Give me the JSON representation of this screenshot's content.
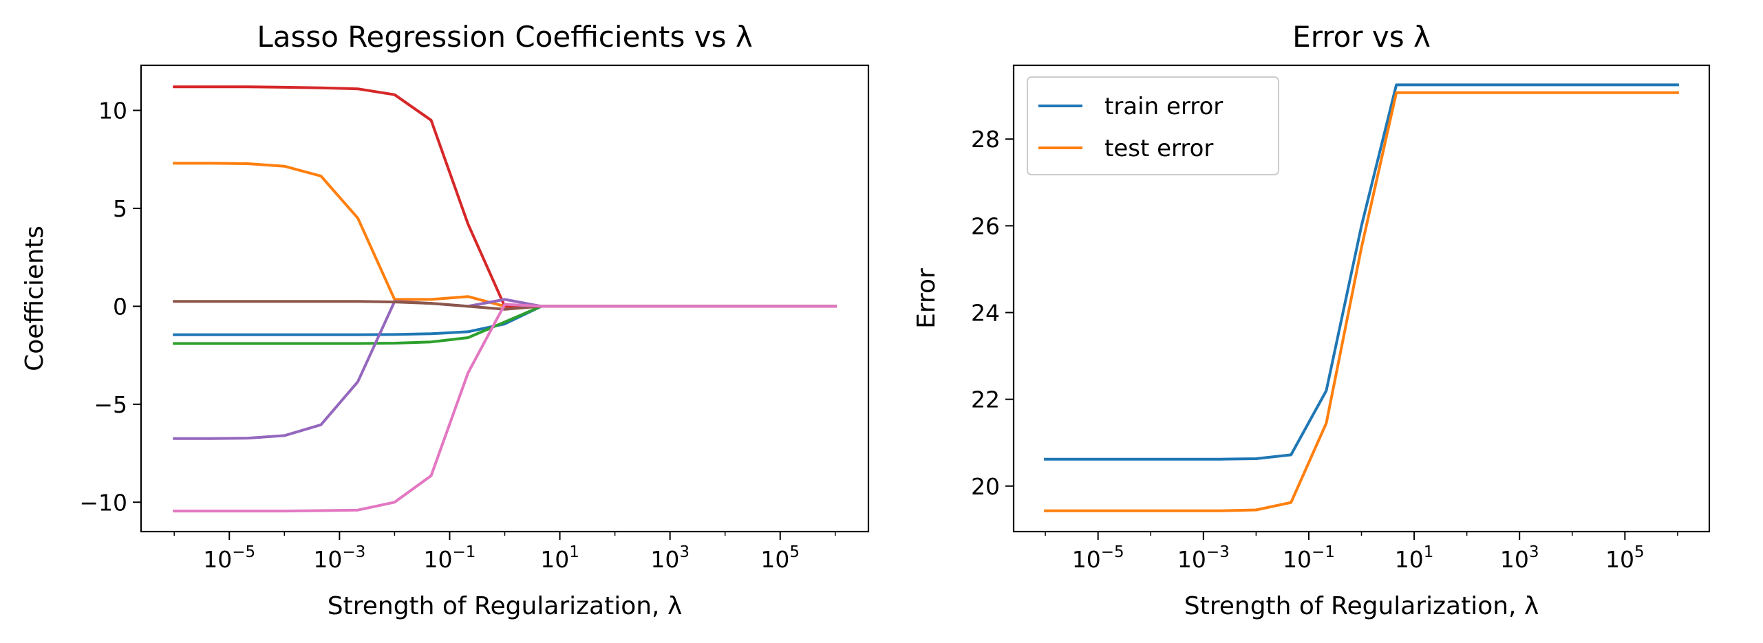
{
  "chart_data": [
    {
      "type": "line",
      "title": "Lasso Regression Coefficients vs λ",
      "xlabel": "Strength of Regularization, λ",
      "ylabel": "Coefficients",
      "xscale": "log",
      "xlim": [
        2.5e-07,
        4000000.0
      ],
      "ylim": [
        -11.5,
        12.3
      ],
      "xticks": [
        {
          "value": 1e-05,
          "base": "10",
          "exp": "−5"
        },
        {
          "value": 0.001,
          "base": "10",
          "exp": "−3"
        },
        {
          "value": 0.1,
          "base": "10",
          "exp": "−1"
        },
        {
          "value": 10.0,
          "base": "10",
          "exp": "1"
        },
        {
          "value": 1000.0,
          "base": "10",
          "exp": "3"
        },
        {
          "value": 100000.0,
          "base": "10",
          "exp": "5"
        }
      ],
      "yticks": [
        {
          "value": 10,
          "label": "10"
        },
        {
          "value": 5,
          "label": "5"
        },
        {
          "value": 0,
          "label": "0"
        },
        {
          "value": -5,
          "label": "−5"
        },
        {
          "value": -10,
          "label": "−10"
        }
      ],
      "grid": false,
      "x": [
        1e-06,
        4.6e-06,
        2.15e-05,
        0.0001,
        0.00046,
        0.00215,
        0.01,
        0.046,
        0.215,
        1,
        4.6,
        21.5,
        100,
        464,
        2150,
        10000,
        46400,
        215000,
        1000000
      ],
      "series": [
        {
          "color": "#1f77b4",
          "values": [
            -1.45,
            -1.45,
            -1.45,
            -1.45,
            -1.45,
            -1.45,
            -1.44,
            -1.4,
            -1.3,
            -0.9,
            0,
            0,
            0,
            0,
            0,
            0,
            0,
            0,
            0
          ]
        },
        {
          "color": "#ff7f0e",
          "values": [
            7.3,
            7.3,
            7.28,
            7.15,
            6.65,
            4.5,
            0.35,
            0.35,
            0.5,
            0,
            0,
            0,
            0,
            0,
            0,
            0,
            0,
            0,
            0
          ]
        },
        {
          "color": "#2ca02c",
          "values": [
            -1.9,
            -1.9,
            -1.9,
            -1.9,
            -1.9,
            -1.9,
            -1.88,
            -1.82,
            -1.6,
            -0.8,
            0,
            0,
            0,
            0,
            0,
            0,
            0,
            0,
            0
          ]
        },
        {
          "color": "#d62728",
          "values": [
            11.2,
            11.2,
            11.2,
            11.18,
            11.15,
            11.1,
            10.8,
            9.5,
            4.2,
            0,
            0,
            0,
            0,
            0,
            0,
            0,
            0,
            0,
            0
          ]
        },
        {
          "color": "#9467bd",
          "values": [
            -6.75,
            -6.75,
            -6.73,
            -6.6,
            -6.05,
            -3.85,
            0.25,
            0.15,
            0,
            0.35,
            0,
            0,
            0,
            0,
            0,
            0,
            0,
            0,
            0
          ]
        },
        {
          "color": "#8c564b",
          "values": [
            0.25,
            0.25,
            0.25,
            0.25,
            0.25,
            0.25,
            0.22,
            0.15,
            0,
            -0.15,
            0,
            0,
            0,
            0,
            0,
            0,
            0,
            0,
            0
          ]
        },
        {
          "color": "#e377c2",
          "values": [
            -10.45,
            -10.45,
            -10.45,
            -10.45,
            -10.43,
            -10.4,
            -10.0,
            -8.65,
            -3.4,
            0.1,
            0,
            0,
            0,
            0,
            0,
            0,
            0,
            0,
            0
          ]
        }
      ]
    },
    {
      "type": "line",
      "title": "Error vs λ",
      "xlabel": "Strength of Regularization, λ",
      "ylabel": "Error",
      "xscale": "log",
      "xlim": [
        2.5e-07,
        4000000.0
      ],
      "ylim": [
        18.95,
        29.7
      ],
      "xticks": [
        {
          "value": 1e-05,
          "base": "10",
          "exp": "−5"
        },
        {
          "value": 0.001,
          "base": "10",
          "exp": "−3"
        },
        {
          "value": 0.1,
          "base": "10",
          "exp": "−1"
        },
        {
          "value": 10.0,
          "base": "10",
          "exp": "1"
        },
        {
          "value": 1000.0,
          "base": "10",
          "exp": "3"
        },
        {
          "value": 100000.0,
          "base": "10",
          "exp": "5"
        }
      ],
      "yticks": [
        {
          "value": 28,
          "label": "28"
        },
        {
          "value": 26,
          "label": "26"
        },
        {
          "value": 24,
          "label": "24"
        },
        {
          "value": 22,
          "label": "22"
        },
        {
          "value": 20,
          "label": "20"
        }
      ],
      "grid": false,
      "legend": "top-left",
      "x": [
        1e-06,
        4.6e-06,
        2.15e-05,
        0.0001,
        0.00046,
        0.00215,
        0.01,
        0.046,
        0.215,
        1,
        4.6,
        21.5,
        100,
        464,
        2150,
        10000,
        46400,
        215000,
        1000000
      ],
      "series": [
        {
          "name": "train error",
          "color": "#1f77b4",
          "values": [
            20.62,
            20.62,
            20.62,
            20.62,
            20.62,
            20.62,
            20.63,
            20.72,
            22.2,
            26.0,
            29.25,
            29.25,
            29.25,
            29.25,
            29.25,
            29.25,
            29.25,
            29.25,
            29.25
          ]
        },
        {
          "name": "test error",
          "color": "#ff7f0e",
          "values": [
            19.43,
            19.43,
            19.43,
            19.43,
            19.43,
            19.43,
            19.45,
            19.62,
            21.45,
            25.5,
            29.07,
            29.07,
            29.07,
            29.07,
            29.07,
            29.07,
            29.07,
            29.07,
            29.07
          ]
        }
      ]
    }
  ]
}
